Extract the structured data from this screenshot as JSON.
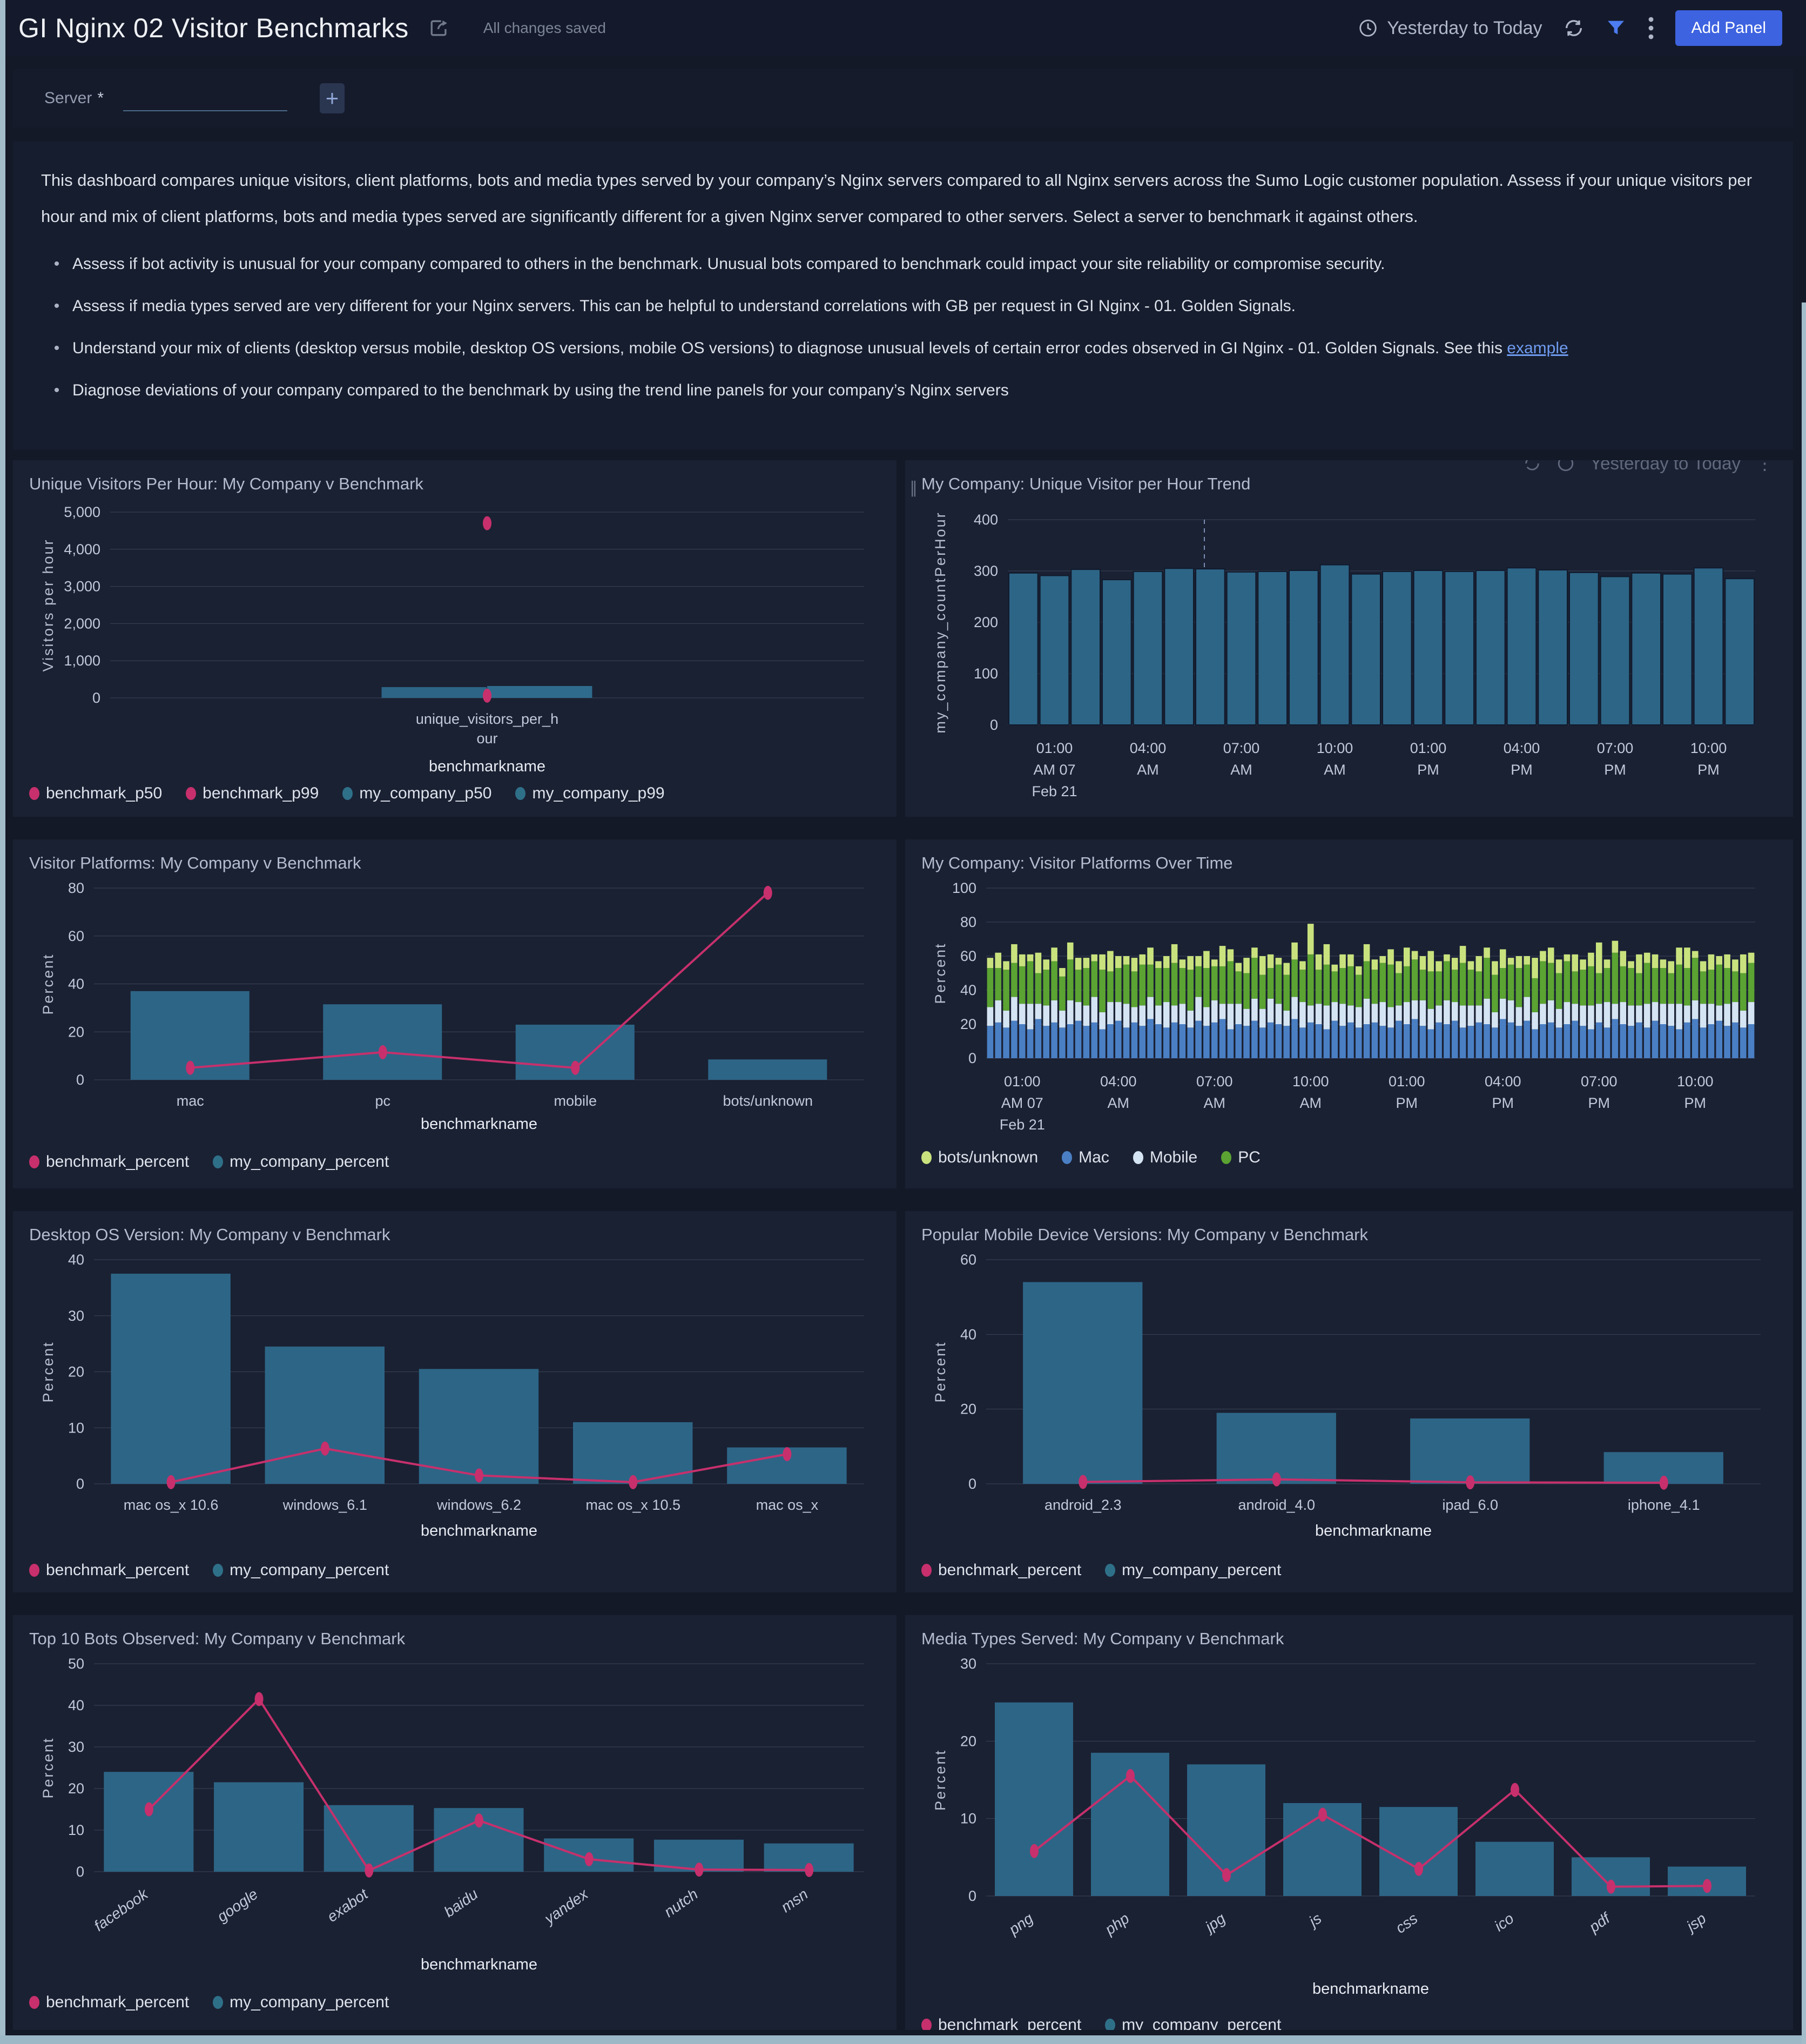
{
  "header": {
    "title": "GI Nginx 02 Visitor Benchmarks",
    "saved_status": "All changes saved",
    "time_range": "Yesterday to Today",
    "add_panel_label": "Add Panel"
  },
  "filter": {
    "label": "Server",
    "required_mark": "*",
    "input_value": "",
    "add_button": "+"
  },
  "description": {
    "paragraph": "This dashboard compares unique visitors, client platforms, bots and media types served by your company’s Nginx servers compared to all Nginx servers across the Sumo Logic customer population. Assess if your unique visitors per hour and mix of client platforms, bots and media types served are significantly different for a given Nginx server compared to other servers. Select a server to benchmark it against others.",
    "bullet1": "Assess if bot activity is unusual for your company compared to others in the benchmark. Unusual bots compared to benchmark could impact your site reliability or compromise security.",
    "bullet2": "Assess if media types served are very different for your Nginx servers. This can be helpful to understand correlations with GB per request in GI Nginx - 01. Golden Signals.",
    "bullet3_prefix": "Understand your mix of clients (desktop versus mobile, desktop OS versions, mobile OS versions) to diagnose unusual levels of certain error codes observed in GI Nginx - 01. Golden Signals. See this ",
    "bullet3_link": "example",
    "bullet4": "Diagnose deviations of your company compared to the benchmark by using the trend line panels for your company’s Nginx servers"
  },
  "colors": {
    "accent_blue": "#3e63e0",
    "filter_icon_blue": "#4d7bf0",
    "bar_teal": "#2d6586",
    "benchmark_pink": "#c7306c",
    "mac_blue": "#4a7fc4",
    "mobile_light": "#d5e4f3",
    "pc_green": "#5ba332",
    "bots_yellowgreen": "#c9e27e",
    "link_blue": "#6f9bf0"
  },
  "chart_data": {
    "p1": {
      "type": "mixed",
      "title": "Unique Visitors Per Hour: My Company v Benchmark",
      "ylabel": "Visitors per hour",
      "xlabel": "benchmarkname",
      "ymax": 5000,
      "yticks": [
        0,
        1000,
        2000,
        3000,
        4000,
        5000
      ],
      "thousands": true,
      "categories": [
        [
          "unique_visitors_per_h",
          "our"
        ]
      ],
      "bar_frac": 0.28,
      "series": [
        {
          "name": "benchmark_p50",
          "kind": "scatter",
          "color": "#c7306c",
          "values": [
            60
          ]
        },
        {
          "name": "benchmark_p99",
          "kind": "scatter",
          "color": "#c7306c",
          "values": [
            4700
          ]
        },
        {
          "name": "my_company_p50",
          "kind": "bar",
          "color": "#2d6586",
          "values": [
            290
          ]
        },
        {
          "name": "my_company_p99",
          "kind": "bar",
          "color": "#2f6b8d",
          "values": [
            320
          ]
        }
      ],
      "legend": [
        {
          "label": "benchmark_p50",
          "color": "#c7306c"
        },
        {
          "label": "benchmark_p99",
          "color": "#c7306c"
        },
        {
          "label": "my_company_p50",
          "color": "#2f7089"
        },
        {
          "label": "my_company_p99",
          "color": "#2f7089"
        }
      ]
    },
    "p2": {
      "type": "timebars",
      "title": "My Company: Unique Visitor per Hour Trend",
      "ylabel": "my_company_countPerHour",
      "ymax": 400,
      "yticks": [
        0,
        100,
        200,
        300,
        400
      ],
      "bar_color": "#2d6586",
      "vline_frac": 0.263,
      "values": [
        296,
        291,
        303,
        283,
        299,
        305,
        304,
        298,
        299,
        301,
        312,
        294,
        299,
        301,
        299,
        301,
        306,
        302,
        297,
        289,
        296,
        294,
        306,
        285
      ],
      "xticks": {
        "idx": [
          1,
          4,
          7,
          10,
          13,
          16,
          19,
          22
        ],
        "labels": [
          [
            "01:00",
            "AM 07",
            "Feb 21"
          ],
          [
            "04:00",
            "AM"
          ],
          [
            "07:00",
            "AM"
          ],
          [
            "10:00",
            "AM"
          ],
          [
            "01:00",
            "PM"
          ],
          [
            "04:00",
            "PM"
          ],
          [
            "07:00",
            "PM"
          ],
          [
            "10:00",
            "PM"
          ]
        ]
      },
      "overlay_text": "Yesterday to Today"
    },
    "p3": {
      "type": "barline",
      "title": "Visitor Platforms: My Company v Benchmark",
      "ylabel": "Percent",
      "xlabel": "benchmarkname",
      "ymax": 80,
      "yticks": [
        0,
        20,
        40,
        60,
        80
      ],
      "bar_frac": 0.62,
      "categories": [
        "mac",
        "pc",
        "mobile",
        "bots/unknown"
      ],
      "bars": {
        "name": "my_company_percent",
        "color": "#2d6586",
        "values": [
          37,
          31.5,
          23,
          8.5
        ]
      },
      "line": {
        "name": "benchmark_percent",
        "color": "#c7306c",
        "values": [
          5,
          11.5,
          5,
          78
        ]
      },
      "legend": [
        {
          "label": "benchmark_percent",
          "color": "#c7306c"
        },
        {
          "label": "my_company_percent",
          "color": "#2f7089"
        }
      ]
    },
    "p4": {
      "type": "stacked",
      "title": "My Company: Visitor Platforms Over Time",
      "ylabel": "Percent",
      "ymax": 100,
      "yticks": [
        0,
        20,
        40,
        60,
        80,
        100
      ],
      "xticks": {
        "idx": [
          4,
          16,
          28,
          40,
          52,
          64,
          76,
          88
        ],
        "labels": [
          [
            "01:00",
            "AM 07",
            "Feb 21"
          ],
          [
            "04:00",
            "AM"
          ],
          [
            "07:00",
            "AM"
          ],
          [
            "10:00",
            "AM"
          ],
          [
            "01:00",
            "PM"
          ],
          [
            "04:00",
            "PM"
          ],
          [
            "07:00",
            "PM"
          ],
          [
            "10:00",
            "PM"
          ]
        ]
      },
      "series": [
        {
          "name": "Mac",
          "color": "#4a7fc4",
          "values": [
            19,
            21,
            18,
            22,
            20,
            17,
            23,
            19,
            21,
            18,
            20,
            22,
            19,
            21,
            17,
            20,
            22,
            18,
            21,
            19,
            23,
            20,
            18,
            21,
            20,
            18,
            22,
            19,
            21,
            23,
            17,
            20,
            19,
            22,
            18,
            21,
            20,
            19,
            23,
            18,
            21,
            20,
            17,
            22,
            19,
            21,
            18,
            20,
            21,
            19,
            18,
            22,
            20,
            23,
            19,
            17,
            21,
            20,
            22,
            18,
            19,
            21,
            20,
            18,
            23,
            21,
            19,
            22,
            17,
            20,
            21,
            18,
            20,
            22,
            19,
            17,
            21,
            18,
            23,
            20,
            19,
            21,
            18,
            22,
            20,
            19,
            17,
            21,
            23,
            18,
            20,
            22,
            19,
            21,
            18,
            20
          ]
        },
        {
          "name": "Mobile",
          "color": "#d5e4f3",
          "values": [
            11,
            13,
            10,
            14,
            12,
            15,
            9,
            12,
            13,
            10,
            14,
            11,
            12,
            15,
            10,
            13,
            11,
            14,
            9,
            12,
            13,
            11,
            15,
            10,
            12,
            10,
            14,
            11,
            13,
            9,
            15,
            12,
            10,
            13,
            11,
            14,
            12,
            9,
            13,
            15,
            10,
            12,
            14,
            11,
            13,
            10,
            12,
            15,
            11,
            14,
            12,
            9,
            13,
            11,
            15,
            12,
            10,
            14,
            11,
            13,
            12,
            10,
            15,
            9,
            12,
            13,
            11,
            14,
            10,
            12,
            13,
            11,
            13,
            10,
            12,
            14,
            11,
            15,
            9,
            13,
            12,
            10,
            14,
            11,
            12,
            13,
            15,
            10,
            11,
            14,
            12,
            9,
            13,
            12,
            10,
            13
          ]
        },
        {
          "name": "PC",
          "color": "#5ba332",
          "values": [
            23,
            19,
            24,
            20,
            22,
            25,
            18,
            21,
            23,
            20,
            24,
            19,
            22,
            21,
            25,
            18,
            20,
            23,
            21,
            24,
            19,
            22,
            20,
            25,
            21,
            24,
            18,
            23,
            20,
            22,
            25,
            19,
            21,
            24,
            20,
            18,
            23,
            21,
            22,
            19,
            30,
            20,
            24,
            18,
            21,
            23,
            19,
            22,
            20,
            23,
            25,
            19,
            21,
            24,
            18,
            22,
            20,
            23,
            19,
            25,
            21,
            20,
            24,
            22,
            18,
            21,
            23,
            19,
            20,
            25,
            22,
            21,
            24,
            19,
            21,
            23,
            18,
            20,
            30,
            21,
            22,
            19,
            24,
            20,
            21,
            18,
            23,
            22,
            25,
            19,
            20,
            24,
            21,
            18,
            22,
            23
          ]
        },
        {
          "name": "bots/unknown",
          "color": "#c9e27e",
          "values": [
            6,
            9,
            5,
            11,
            7,
            4,
            12,
            6,
            8,
            5,
            10,
            7,
            6,
            4,
            9,
            12,
            7,
            5,
            8,
            6,
            10,
            4,
            7,
            11,
            5,
            8,
            6,
            10,
            4,
            12,
            7,
            5,
            9,
            6,
            11,
            8,
            4,
            7,
            10,
            5,
            18,
            9,
            12,
            4,
            8,
            7,
            5,
            10,
            6,
            4,
            9,
            7,
            11,
            5,
            8,
            12,
            6,
            4,
            7,
            10,
            5,
            9,
            6,
            8,
            11,
            4,
            7,
            5,
            12,
            6,
            9,
            8,
            4,
            10,
            6,
            8,
            18,
            5,
            7,
            9,
            4,
            11,
            6,
            8,
            5,
            7,
            10,
            12,
            4,
            6,
            9,
            5,
            8,
            7,
            11,
            6
          ]
        }
      ],
      "legend": [
        {
          "label": "bots/unknown",
          "color": "#c9e27e"
        },
        {
          "label": "Mac",
          "color": "#4a7fc4"
        },
        {
          "label": "Mobile",
          "color": "#d5e4f3"
        },
        {
          "label": "PC",
          "color": "#5ba332"
        }
      ]
    },
    "p5": {
      "type": "barline",
      "title": "Desktop OS Version: My Company v Benchmark",
      "ylabel": "Percent",
      "xlabel": "benchmarkname",
      "ymax": 40,
      "yticks": [
        0,
        10,
        20,
        30,
        40
      ],
      "bar_frac": 0.78,
      "categories": [
        "mac os_x 10.6",
        "windows_6.1",
        "windows_6.2",
        "mac os_x 10.5",
        "mac os_x"
      ],
      "bars": {
        "name": "my_company_percent",
        "color": "#2d6586",
        "values": [
          37.5,
          24.5,
          20.5,
          11,
          6.5
        ]
      },
      "line": {
        "name": "benchmark_percent",
        "color": "#c7306c",
        "values": [
          0.3,
          6.3,
          1.5,
          0.3,
          5.3
        ]
      },
      "legend": [
        {
          "label": "benchmark_percent",
          "color": "#c7306c"
        },
        {
          "label": "my_company_percent",
          "color": "#2f7089"
        }
      ]
    },
    "p6": {
      "type": "barline",
      "title": "Popular Mobile Device Versions: My Company v Benchmark",
      "ylabel": "Percent",
      "xlabel": "benchmarkname",
      "ymax": 60,
      "yticks": [
        0,
        20,
        40,
        60
      ],
      "bar_frac": 0.62,
      "categories": [
        "android_2.3",
        "android_4.0",
        "ipad_6.0",
        "iphone_4.1"
      ],
      "bars": {
        "name": "my_company_percent",
        "color": "#2d6586",
        "values": [
          54,
          19,
          17.5,
          8.5
        ]
      },
      "line": {
        "name": "benchmark_percent",
        "color": "#c7306c",
        "values": [
          0.5,
          1.2,
          0.4,
          0.3
        ]
      },
      "legend": [
        {
          "label": "benchmark_percent",
          "color": "#c7306c"
        },
        {
          "label": "my_company_percent",
          "color": "#2f7089"
        }
      ]
    },
    "p7": {
      "type": "barline",
      "title": "Top 10 Bots Observed: My Company v Benchmark",
      "ylabel": "Percent",
      "xlabel": "benchmarkname",
      "ymax": 50,
      "yticks": [
        0,
        10,
        20,
        30,
        40,
        50
      ],
      "bar_frac": 0.82,
      "rotate_x": true,
      "categories": [
        "facebook",
        "google",
        "exabot",
        "baidu",
        "yandex",
        "nutch",
        "msn"
      ],
      "bars": {
        "name": "my_company_percent",
        "color": "#2d6586",
        "values": [
          24,
          21.5,
          16,
          15.3,
          8,
          7.7,
          6.8
        ]
      },
      "line": {
        "name": "benchmark_percent",
        "color": "#c7306c",
        "values": [
          15,
          41.5,
          0.3,
          12.3,
          3,
          0.5,
          0.4
        ]
      },
      "legend": [
        {
          "label": "benchmark_percent",
          "color": "#c7306c"
        },
        {
          "label": "my_company_percent",
          "color": "#2f7089"
        }
      ]
    },
    "p8": {
      "type": "barline",
      "title": "Media Types Served: My Company v Benchmark",
      "ylabel": "Percent",
      "xlabel": "benchmarkname",
      "ymax": 30,
      "yticks": [
        0,
        10,
        20,
        30
      ],
      "bar_frac": 0.82,
      "rotate_x": true,
      "categories": [
        "png",
        "php",
        "jpg",
        "js",
        "css",
        "ico",
        "pdf",
        "jsp"
      ],
      "bars": {
        "name": "my_company_percent",
        "color": "#2d6586",
        "values": [
          25,
          18.5,
          17,
          12,
          11.5,
          7,
          5,
          3.8
        ]
      },
      "line": {
        "name": "benchmark_percent",
        "color": "#c7306c",
        "values": [
          5.8,
          15.5,
          2.7,
          10.5,
          3.5,
          13.7,
          1.2,
          1.3
        ]
      },
      "legend": [
        {
          "label": "benchmark_percent",
          "color": "#c7306c"
        },
        {
          "label": "my_company_percent",
          "color": "#2f7089"
        }
      ]
    }
  }
}
